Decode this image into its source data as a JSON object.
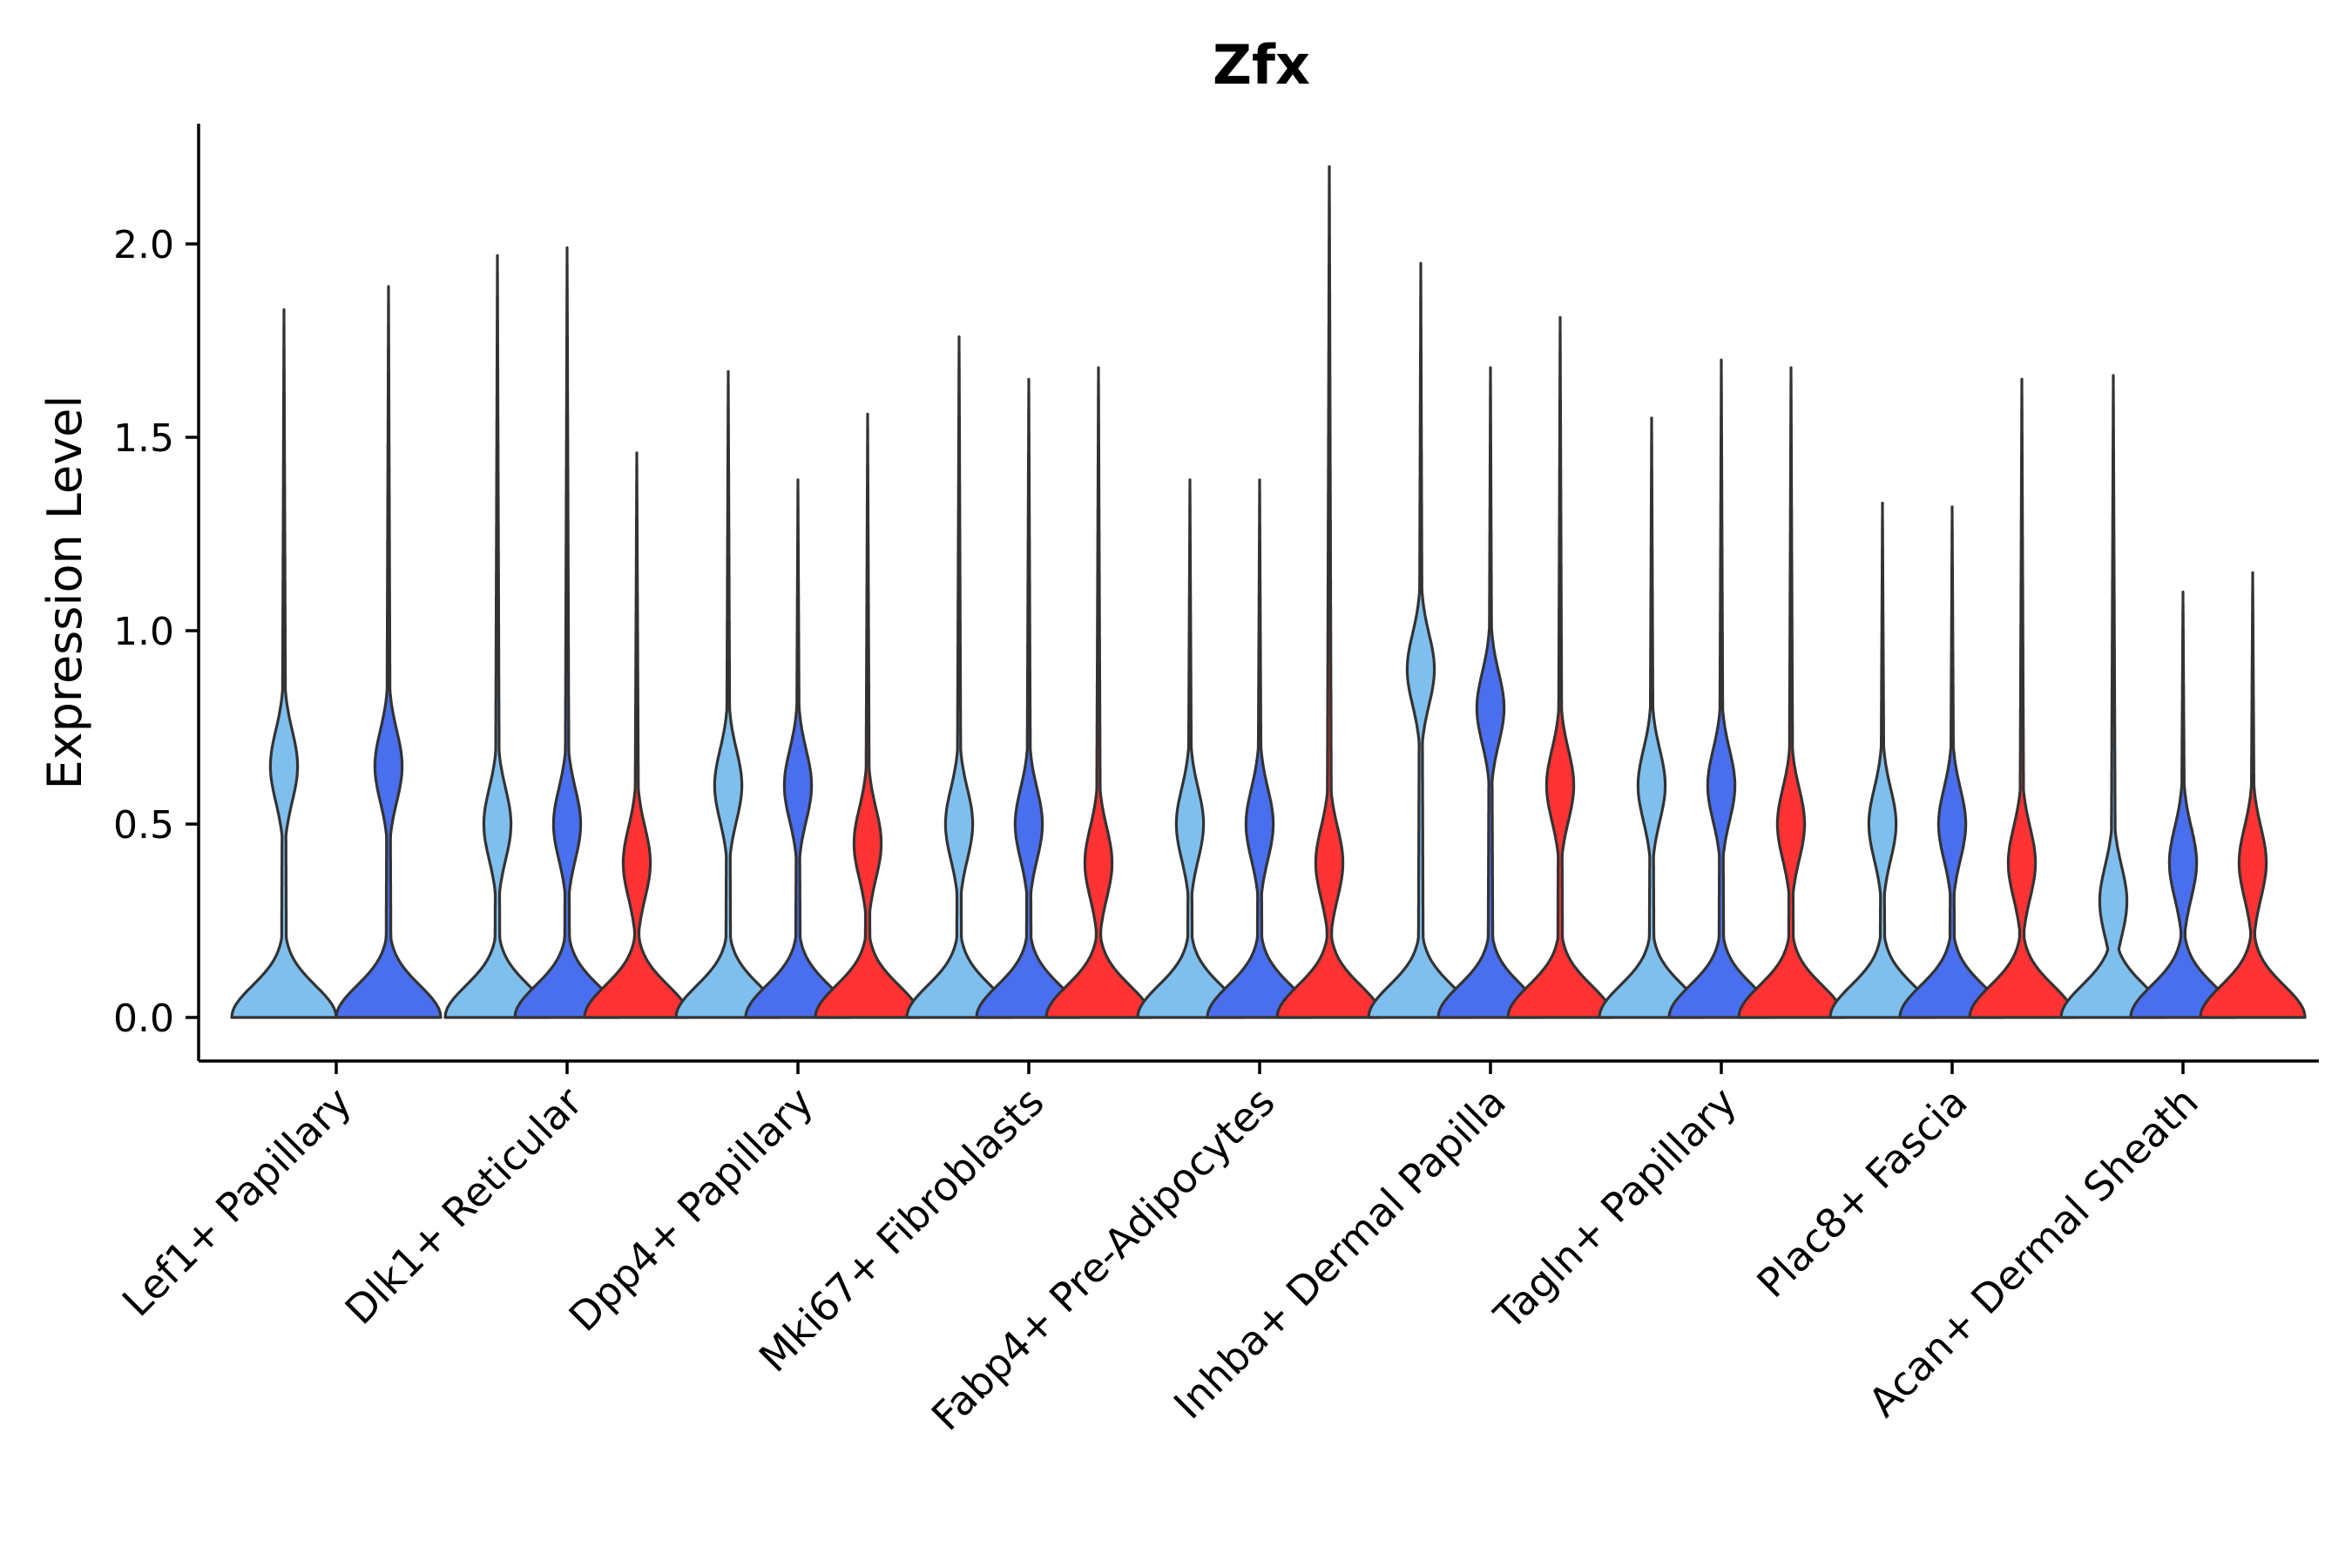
{
  "chart_data": {
    "type": "violin",
    "title": "Zfx",
    "xlabel": "",
    "ylabel": "Expression Level",
    "ylim": [
      -0.11,
      2.32
    ],
    "yticks": [
      0.0,
      0.5,
      1.0,
      1.5,
      2.0
    ],
    "ytick_labels": [
      "0.0",
      "0.5",
      "1.0",
      "1.5",
      "2.0"
    ],
    "legend": "none",
    "colors": {
      "group1": "#7FBFEE",
      "group2": "#4A6FEE",
      "group3": "#FF3333"
    },
    "categories": [
      "Lef1+ Papillary",
      "Dlk1+ Reticular",
      "Dpp4+ Papillary",
      "Mki67+ Fibroblasts",
      "Fabp4+ Pre-Adipocytes",
      "Inhba+ Dermal Papilla",
      "Tagln+ Papillary",
      "Plac8+ Fascia",
      "Acan+ Dermal Sheath"
    ],
    "violins": [
      {
        "category": "Lef1+ Papillary",
        "group": "group1",
        "max": 1.83,
        "mode": 0.65
      },
      {
        "category": "Lef1+ Papillary",
        "group": "group2",
        "max": 1.89,
        "mode": 0.65
      },
      {
        "category": "Dlk1+ Reticular",
        "group": "group1",
        "max": 1.97,
        "mode": 0.5
      },
      {
        "category": "Dlk1+ Reticular",
        "group": "group2",
        "max": 1.99,
        "mode": 0.5
      },
      {
        "category": "Dlk1+ Reticular",
        "group": "group3",
        "max": 1.46,
        "mode": 0.4
      },
      {
        "category": "Dpp4+ Papillary",
        "group": "group1",
        "max": 1.67,
        "mode": 0.6
      },
      {
        "category": "Dpp4+ Papillary",
        "group": "group2",
        "max": 1.39,
        "mode": 0.6
      },
      {
        "category": "Dpp4+ Papillary",
        "group": "group3",
        "max": 1.56,
        "mode": 0.45
      },
      {
        "category": "Mki67+ Fibroblasts",
        "group": "group1",
        "max": 1.76,
        "mode": 0.5
      },
      {
        "category": "Mki67+ Fibroblasts",
        "group": "group2",
        "max": 1.65,
        "mode": 0.5
      },
      {
        "category": "Mki67+ Fibroblasts",
        "group": "group3",
        "max": 1.68,
        "mode": 0.4
      },
      {
        "category": "Fabp4+ Pre-Adipocytes",
        "group": "group1",
        "max": 1.39,
        "mode": 0.5
      },
      {
        "category": "Fabp4+ Pre-Adipocytes",
        "group": "group2",
        "max": 1.39,
        "mode": 0.5
      },
      {
        "category": "Fabp4+ Pre-Adipocytes",
        "group": "group3",
        "max": 2.2,
        "mode": 0.4
      },
      {
        "category": "Inhba+ Dermal Papilla",
        "group": "group1",
        "max": 1.95,
        "mode": 0.9
      },
      {
        "category": "Inhba+ Dermal Papilla",
        "group": "group2",
        "max": 1.68,
        "mode": 0.8
      },
      {
        "category": "Inhba+ Dermal Papilla",
        "group": "group3",
        "max": 1.81,
        "mode": 0.6
      },
      {
        "category": "Tagln+ Papillary",
        "group": "group1",
        "max": 1.55,
        "mode": 0.6
      },
      {
        "category": "Tagln+ Papillary",
        "group": "group2",
        "max": 1.7,
        "mode": 0.6
      },
      {
        "category": "Tagln+ Papillary",
        "group": "group3",
        "max": 1.68,
        "mode": 0.5
      },
      {
        "category": "Plac8+ Fascia",
        "group": "group1",
        "max": 1.33,
        "mode": 0.5
      },
      {
        "category": "Plac8+ Fascia",
        "group": "group2",
        "max": 1.32,
        "mode": 0.5
      },
      {
        "category": "Plac8+ Fascia",
        "group": "group3",
        "max": 1.65,
        "mode": 0.4
      },
      {
        "category": "Acan+ Dermal Sheath",
        "group": "group1",
        "max": 1.66,
        "mode": 0.3
      },
      {
        "category": "Acan+ Dermal Sheath",
        "group": "group2",
        "max": 1.1,
        "mode": 0.4
      },
      {
        "category": "Acan+ Dermal Sheath",
        "group": "group3",
        "max": 1.15,
        "mode": 0.4
      }
    ]
  }
}
